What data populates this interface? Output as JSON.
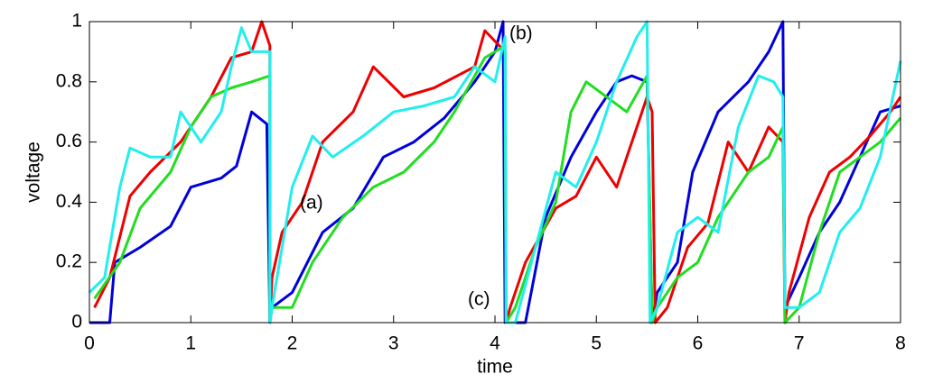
{
  "chart_data": {
    "type": "line",
    "xlabel": "time",
    "ylabel": "voltage",
    "xlim": [
      0,
      8
    ],
    "ylim": [
      0,
      1
    ],
    "xticks": [
      0,
      1,
      2,
      3,
      4,
      5,
      6,
      7,
      8
    ],
    "yticks": [
      0,
      0.2,
      0.4,
      0.6,
      0.8,
      1
    ],
    "annotations": [
      "(a)",
      "(b)",
      "(c)"
    ],
    "series": [
      {
        "color": "#0000dd",
        "x": [
          0,
          0.2,
          0.25,
          0.5,
          0.8,
          1.0,
          1.3,
          1.45,
          1.6,
          1.75,
          1.78,
          1.8,
          2.0,
          2.3,
          2.6,
          2.9,
          3.2,
          3.5,
          3.8,
          4.0,
          4.08,
          4.1,
          4.15,
          4.3,
          4.5,
          4.75,
          5.0,
          5.2,
          5.35,
          5.5,
          5.55,
          5.6,
          5.8,
          5.95,
          6.2,
          6.5,
          6.7,
          6.84,
          6.86,
          7.0,
          7.2,
          7.4,
          7.6,
          7.8,
          8.0
        ],
        "values": [
          0,
          0,
          0.2,
          0.25,
          0.32,
          0.45,
          0.48,
          0.52,
          0.7,
          0.66,
          0,
          0.05,
          0.1,
          0.3,
          0.38,
          0.55,
          0.6,
          0.68,
          0.8,
          0.9,
          1.0,
          0,
          0,
          0,
          0.35,
          0.55,
          0.7,
          0.8,
          0.82,
          0.8,
          0,
          0.1,
          0.2,
          0.5,
          0.7,
          0.8,
          0.9,
          1.0,
          0.05,
          0.15,
          0.3,
          0.4,
          0.55,
          0.7,
          0.72
        ]
      },
      {
        "color": "#ee0000",
        "x": [
          0.05,
          0.2,
          0.4,
          0.6,
          0.9,
          1.2,
          1.4,
          1.6,
          1.7,
          1.78,
          1.78,
          1.8,
          1.9,
          2.1,
          2.3,
          2.6,
          2.8,
          3.1,
          3.4,
          3.8,
          3.9,
          4.1,
          4.11,
          4.15,
          4.3,
          4.6,
          4.8,
          5.0,
          5.2,
          5.4,
          5.5,
          5.55,
          5.58,
          5.7,
          5.9,
          6.1,
          6.3,
          6.5,
          6.7,
          6.84,
          6.86,
          6.9,
          7.1,
          7.3,
          7.5,
          7.7,
          7.9,
          8.0
        ],
        "values": [
          0.05,
          0.15,
          0.42,
          0.5,
          0.6,
          0.75,
          0.88,
          0.9,
          1.0,
          0.92,
          0,
          0.15,
          0.3,
          0.4,
          0.6,
          0.7,
          0.85,
          0.75,
          0.78,
          0.85,
          0.97,
          0.9,
          0,
          0.05,
          0.2,
          0.38,
          0.42,
          0.55,
          0.45,
          0.65,
          0.75,
          0.7,
          0,
          0.05,
          0.25,
          0.33,
          0.6,
          0.5,
          0.65,
          0.6,
          0,
          0.1,
          0.35,
          0.5,
          0.55,
          0.62,
          0.7,
          0.75
        ]
      },
      {
        "color": "#22dd22",
        "x": [
          0.05,
          0.3,
          0.5,
          0.8,
          1.0,
          1.2,
          1.4,
          1.6,
          1.78,
          1.78,
          1.8,
          2.0,
          2.2,
          2.5,
          2.8,
          3.1,
          3.4,
          3.6,
          3.9,
          4.1,
          4.11,
          4.2,
          4.4,
          4.6,
          4.75,
          4.9,
          5.1,
          5.3,
          5.5,
          5.55,
          5.6,
          5.8,
          6.0,
          6.2,
          6.5,
          6.7,
          6.84,
          6.86,
          7.0,
          7.2,
          7.4,
          7.6,
          7.8,
          8.0
        ],
        "values": [
          0.08,
          0.2,
          0.38,
          0.5,
          0.65,
          0.75,
          0.78,
          0.8,
          0.82,
          0,
          0.05,
          0.05,
          0.2,
          0.35,
          0.45,
          0.5,
          0.6,
          0.7,
          0.88,
          0.92,
          0,
          0.05,
          0.25,
          0.4,
          0.7,
          0.8,
          0.75,
          0.7,
          0.82,
          0,
          0.05,
          0.15,
          0.2,
          0.35,
          0.5,
          0.55,
          0.65,
          0,
          0.05,
          0.3,
          0.5,
          0.55,
          0.6,
          0.68
        ]
      },
      {
        "color": "#22eeee",
        "x": [
          0,
          0.15,
          0.3,
          0.4,
          0.6,
          0.8,
          0.9,
          1.1,
          1.3,
          1.4,
          1.5,
          1.6,
          1.78,
          1.78,
          1.8,
          2.0,
          2.2,
          2.4,
          2.7,
          3.0,
          3.3,
          3.6,
          3.8,
          4.0,
          4.1,
          4.11,
          4.2,
          4.4,
          4.6,
          4.8,
          5.0,
          5.2,
          5.4,
          5.5,
          5.53,
          5.6,
          5.8,
          6.0,
          6.2,
          6.4,
          6.6,
          6.75,
          6.84,
          6.86,
          7.0,
          7.2,
          7.4,
          7.6,
          7.8,
          8.0
        ],
        "values": [
          0.1,
          0.15,
          0.45,
          0.58,
          0.55,
          0.55,
          0.7,
          0.6,
          0.7,
          0.85,
          0.98,
          0.9,
          0.9,
          0,
          0.05,
          0.45,
          0.62,
          0.55,
          0.62,
          0.7,
          0.72,
          0.75,
          0.85,
          0.8,
          0.95,
          0,
          0,
          0.25,
          0.5,
          0.45,
          0.6,
          0.8,
          0.95,
          1.0,
          0,
          0.05,
          0.3,
          0.35,
          0.3,
          0.65,
          0.82,
          0.8,
          0.75,
          0.05,
          0.05,
          0.1,
          0.3,
          0.38,
          0.55,
          0.87
        ]
      }
    ]
  }
}
